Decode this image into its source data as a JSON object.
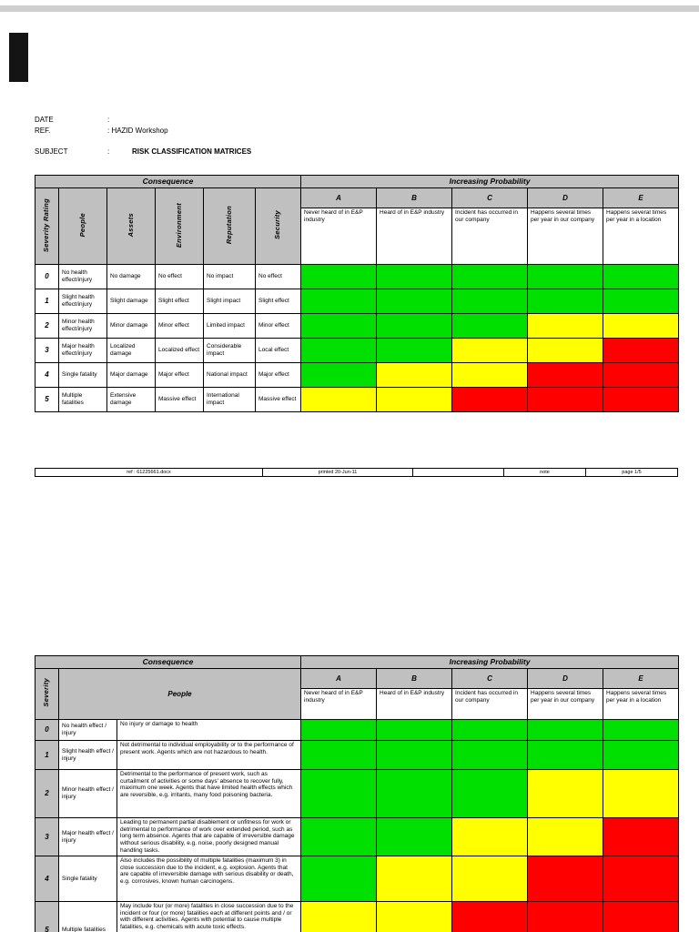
{
  "meta": {
    "date_label": "DATE",
    "date_value": ":",
    "ref_label": "REF.",
    "ref_value": ": HAZID Workshop",
    "subject_label": "SUBJECT",
    "subject_colon": ":",
    "subject_value": "RISK CLASSIFICATION MATRICES"
  },
  "colors": {
    "green": "#00e000",
    "yellow": "#ffff00",
    "red": "#ff0000",
    "header_gray": "#c0c0c0"
  },
  "matrix1": {
    "consequence_header": "Consequence",
    "probability_header": "Increasing Probability",
    "severity_header": "Severity Rating",
    "consequence_columns": [
      "People",
      "Assets",
      "Environment",
      "Reputation",
      "Security"
    ],
    "probability_columns": [
      {
        "label": "A",
        "desc": "Never heard of in E&P industry"
      },
      {
        "label": "B",
        "desc": "Heard of in E&P industry"
      },
      {
        "label": "C",
        "desc": "Incident has occurred in our company"
      },
      {
        "label": "D",
        "desc": "Happens several times per year in our company"
      },
      {
        "label": "E",
        "desc": "Happens several times per year in a location"
      }
    ],
    "rows": [
      {
        "rating": "0",
        "cells": [
          "No health effect/injury",
          "No damage",
          "No effect",
          "No impact",
          "No effect"
        ],
        "risk": [
          "green",
          "green",
          "green",
          "green",
          "green"
        ]
      },
      {
        "rating": "1",
        "cells": [
          "Slight health effect/injury",
          "Slight damage",
          "Slight effect",
          "Slight impact",
          "Slight effect"
        ],
        "risk": [
          "green",
          "green",
          "green",
          "green",
          "green"
        ]
      },
      {
        "rating": "2",
        "cells": [
          "Minor health effect/injury",
          "Minor damage",
          "Minor effect",
          "Limited impact",
          "Minor effect"
        ],
        "risk": [
          "green",
          "green",
          "green",
          "yellow",
          "yellow"
        ]
      },
      {
        "rating": "3",
        "cells": [
          "Major health effect/injury",
          "Localized damage",
          "Localized effect",
          "Considerable impact",
          "Local effect"
        ],
        "risk": [
          "green",
          "green",
          "yellow",
          "yellow",
          "red"
        ]
      },
      {
        "rating": "4",
        "cells": [
          "Single fatality",
          "Major damage",
          "Major effect",
          "National impact",
          "Major effect"
        ],
        "risk": [
          "green",
          "yellow",
          "yellow",
          "red",
          "red"
        ]
      },
      {
        "rating": "5",
        "cells": [
          "Multiple fatalities",
          "Extensive damage",
          "Massive effect",
          "International impact",
          "Massive effect"
        ],
        "risk": [
          "yellow",
          "yellow",
          "red",
          "red",
          "red"
        ]
      }
    ]
  },
  "footer": {
    "cells": [
      "ref : 61225661.docx",
      "printed 20-Jun-11",
      "",
      "note",
      "page 1/5"
    ]
  },
  "matrix2": {
    "consequence_header": "Consequence",
    "probability_header": "Increasing Probability",
    "severity_header": "Severity",
    "people_header": "People",
    "probability_columns": [
      {
        "label": "A",
        "desc": "Never heard of in E&P industry"
      },
      {
        "label": "B",
        "desc": "Heard of in E&P industry"
      },
      {
        "label": "C",
        "desc": "Incident has occurred in our company"
      },
      {
        "label": "D",
        "desc": "Happens several times per year in our company"
      },
      {
        "label": "E",
        "desc": "Happens several times per year in a location"
      }
    ],
    "rows": [
      {
        "rating": "0",
        "label": "No health effect / injury",
        "description": "No injury or damage to health",
        "risk": [
          "green",
          "green",
          "green",
          "green",
          "green"
        ]
      },
      {
        "rating": "1",
        "label": "Slight health effect / injury",
        "description": "Not detrimental to individual employability or to the performance of present work. Agents which are not hazardous to health.",
        "risk": [
          "green",
          "green",
          "green",
          "green",
          "green"
        ]
      },
      {
        "rating": "2",
        "label": "Minor health effect / injury",
        "description": "Detrimental to the performance of present work, such as curtailment of activities or some days' absence to recover fully, maximum one week. Agents that have limited health effects which are reversible, e.g. irritants, many food poisoning bacteria.",
        "risk": [
          "green",
          "green",
          "green",
          "yellow",
          "yellow"
        ]
      },
      {
        "rating": "3",
        "label": "Major health effect / injury",
        "description": "Leading to permanent partial disablement or unfitness for work or detrimental to performance of work over extended period, such as long term absence. Agents that are capable of irreversible damage without serious disability, e.g. noise, poorly designed manual handling tasks.",
        "risk": [
          "green",
          "green",
          "yellow",
          "yellow",
          "red"
        ]
      },
      {
        "rating": "4",
        "label": "Single fatality",
        "description": "Also includes the possibility of multiple fatalities (maximum 3) in close succession due to the incident, e.g. explosion. Agents that are capable of irreversible damage with serious disability or death, e.g. corrosives, known human carcinogens.",
        "risk": [
          "green",
          "yellow",
          "yellow",
          "red",
          "red"
        ]
      },
      {
        "rating": "5",
        "label": "Multiple fatalities",
        "description": "May include four (or more) fatalities in close succession due to the incident or four (or more) fatalities each at different points and / or with different activities. Agents with potential to cause multiple fatalities, e.g. chemicals with acute toxic effects.",
        "risk": [
          "yellow",
          "yellow",
          "red",
          "red",
          "red"
        ]
      }
    ]
  }
}
